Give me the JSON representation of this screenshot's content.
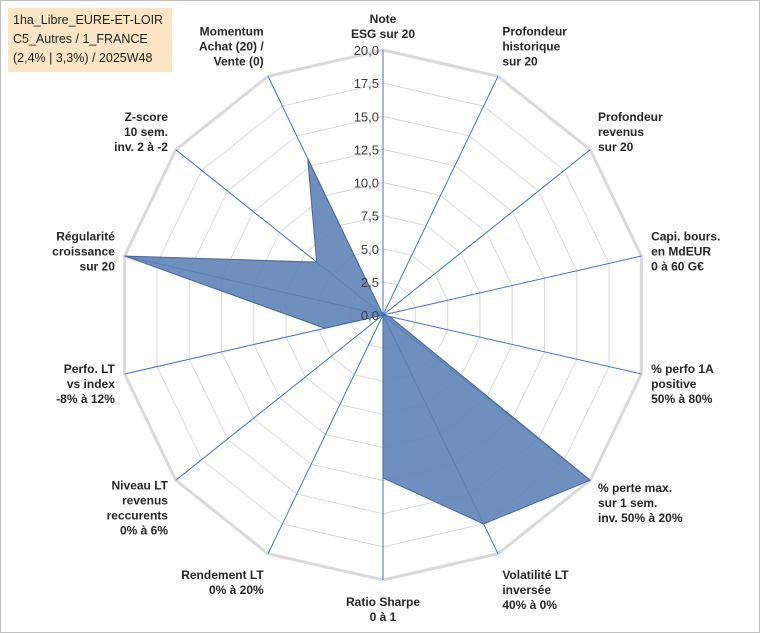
{
  "info_box": {
    "line1": "1ha_Libre_EURE-ET-LOIR",
    "line2": "C5_Autres / 1_FRANCE",
    "line3": "(2,4% | 3,3%) / 2025W48"
  },
  "chart_data": {
    "type": "radar",
    "rmax": 20,
    "ticks": [
      "0,0",
      "2,5",
      "5,0",
      "7,5",
      "10,0",
      "12,5",
      "15,0",
      "17,5",
      "20,0"
    ],
    "axes": [
      {
        "label": [
          "Note",
          "ESG sur 20"
        ],
        "value": 0
      },
      {
        "label": [
          "Profondeur",
          "historique",
          "sur 20"
        ],
        "value": 0
      },
      {
        "label": [
          "Profondeur",
          "revenus",
          "sur 20"
        ],
        "value": 0
      },
      {
        "label": [
          "Capi. bours.",
          "en MdEUR",
          "0 à 60 G€"
        ],
        "value": 0
      },
      {
        "label": [
          "% perfo 1A",
          "positive",
          "50% à 80%"
        ],
        "value": 0.5
      },
      {
        "label": [
          "% perte max.",
          "sur 1 sem.",
          "inv. 50% à 20%"
        ],
        "value": 20
      },
      {
        "label": [
          "Volatilité LT",
          "inversée",
          "40% à 0%"
        ],
        "value": 17.5
      },
      {
        "label": [
          "Ratio Sharpe",
          "0 à 1"
        ],
        "value": 12.3
      },
      {
        "label": [
          "Rendement LT",
          "0% à 20%"
        ],
        "value": 0
      },
      {
        "label": [
          "Niveau LT",
          "revenus",
          "reccurents",
          "0% à 6%"
        ],
        "value": 0
      },
      {
        "label": [
          "Perfo. LT",
          "vs index",
          "-8% à 12%"
        ],
        "value": 4.5
      },
      {
        "label": [
          "Régularité",
          "croissance",
          "sur 20"
        ],
        "value": 20
      },
      {
        "label": [
          "Z-score",
          "10 sem.",
          "inv. 2 à -2"
        ],
        "value": 6.4
      },
      {
        "label": [
          "Momentum",
          "Achat (20) /",
          "Vente (0)"
        ],
        "value": 13.1
      }
    ]
  }
}
